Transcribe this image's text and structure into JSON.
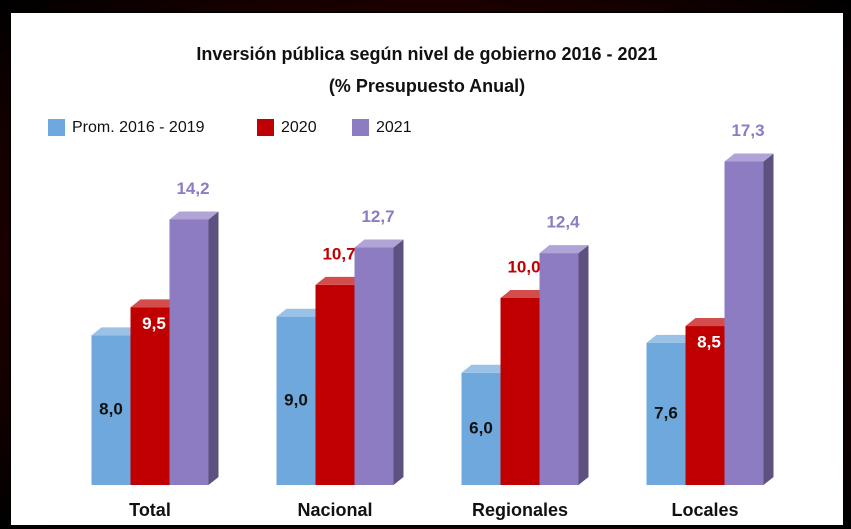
{
  "chart_data": {
    "type": "bar3d",
    "title": "Inversión pública según nivel de gobierno 2016 - 2021",
    "subtitle": "(% Presupuesto Anual)",
    "categories": [
      "Total",
      "Nacional",
      "Regionales",
      "Locales"
    ],
    "series": [
      {
        "name": "Prom. 2016 - 2019",
        "color": "#6fa8dc",
        "values": [
          8.0,
          9.0,
          6.0,
          7.6
        ],
        "value_labels": [
          "8,0",
          "9,0",
          "6,0",
          "7,6"
        ]
      },
      {
        "name": "2020",
        "color": "#c00000",
        "values": [
          9.5,
          10.7,
          10.0,
          8.5
        ],
        "value_labels": [
          "9,5",
          "10,7",
          "10,0",
          "8,5"
        ]
      },
      {
        "name": "2021",
        "color": "#8e7cc3",
        "values": [
          14.2,
          12.7,
          12.4,
          17.3
        ],
        "value_labels": [
          "14,2",
          "12,7",
          "12,4",
          "17,3"
        ]
      }
    ]
  }
}
